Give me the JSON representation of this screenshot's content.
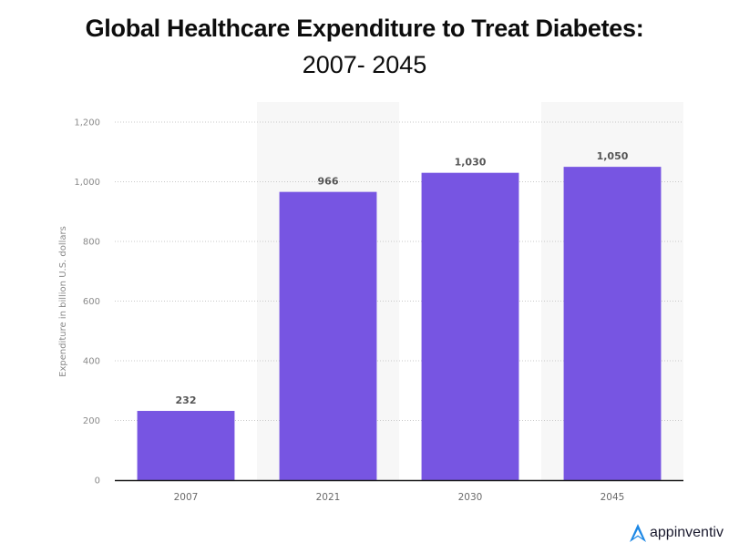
{
  "header": {
    "title_line1": "Global Healthcare Expenditure to Treat Diabetes:",
    "title_line2": "2007- 2045"
  },
  "branding": {
    "logo_icon": "appinventiv-a-logo-icon",
    "logo_text": "appinventiv",
    "logo_color": "#1e88e5"
  },
  "chart_data": {
    "type": "bar",
    "title": "Global Healthcare Expenditure to Treat Diabetes: 2007- 2045",
    "categories": [
      "2007",
      "2021",
      "2030",
      "2045"
    ],
    "values": [
      232,
      966,
      1030,
      1050
    ],
    "data_labels": [
      "232",
      "966",
      "1,030",
      "1,050"
    ],
    "xlabel": "",
    "ylabel": "Expenditure in billion U.S. dollars",
    "ylim": [
      0,
      1200
    ],
    "yticks": [
      0,
      200,
      400,
      600,
      800,
      1000,
      1200
    ],
    "ytick_labels": [
      "0",
      "200",
      "400",
      "600",
      "800",
      "1,000",
      "1,200"
    ],
    "grid": true,
    "bar_color": "#7755e2",
    "alternating_band_color": "#f7f7f7",
    "legend": "none"
  }
}
